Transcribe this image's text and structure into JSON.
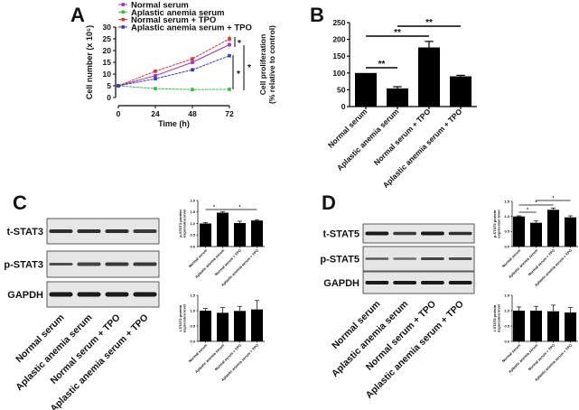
{
  "panel_labels": {
    "a": "A",
    "b": "B",
    "c": "C",
    "d": "D"
  },
  "groups": [
    "Normal serum",
    "Aplastic anemia serum",
    "Normal serum + TPO",
    "Aplastic anemia serum + TPO"
  ],
  "chart_data": [
    {
      "id": "A",
      "type": "line",
      "xlabel": "Time (h)",
      "ylabel": "Cell number (x 10⁵)",
      "x": [
        0,
        24,
        48,
        72
      ],
      "xticks": [
        "0",
        "24",
        "48",
        "72"
      ],
      "ylim": [
        0,
        30
      ],
      "yticks": [
        "0",
        "5",
        "10",
        "15",
        "20",
        "25",
        "30"
      ],
      "grid": false,
      "legend": "top",
      "series": [
        {
          "name": "Normal serum",
          "color": "#9b30c8",
          "marker": "diamond",
          "values": [
            5,
            9.3,
            15,
            22.5
          ],
          "errors": [
            0.2,
            0.5,
            0.8,
            0.8
          ]
        },
        {
          "name": "Aplastic anemia serum",
          "color": "#2fbf3a",
          "marker": "square",
          "values": [
            5,
            3.8,
            3.4,
            3.5
          ],
          "errors": [
            0.2,
            0.3,
            0.2,
            0.2
          ]
        },
        {
          "name": "Normal serum + TPO",
          "color": "#e0302a",
          "marker": "triangle-up",
          "values": [
            5,
            11.2,
            16.5,
            25
          ],
          "errors": [
            0.2,
            0.7,
            0.6,
            1.3
          ]
        },
        {
          "name": "Aplastic anemia serum + TPO",
          "color": "#2b3bd6",
          "marker": "triangle-down",
          "values": [
            5,
            8,
            11.8,
            17.8
          ],
          "errors": [
            0.2,
            0.4,
            0.8,
            0.7
          ]
        }
      ],
      "annotations": [
        "*",
        "*",
        "*"
      ]
    },
    {
      "id": "B",
      "type": "bar",
      "ylabel": "Cell proliferation",
      "ylabel2": "(% relative to control)",
      "categories": [
        "Normal serum",
        "Aplastic anemia serum",
        "Normal serum + TPO",
        "Aplastic anemia serum + TPO"
      ],
      "values": [
        100,
        54,
        176,
        90
      ],
      "errors": [
        0,
        5,
        18,
        3
      ],
      "ylim": [
        0,
        250
      ],
      "yticks": [
        "0",
        "50",
        "100",
        "150",
        "200",
        "250"
      ],
      "color": "#000000",
      "annotations": [
        "**",
        "**",
        "**"
      ]
    },
    {
      "id": "C-p",
      "type": "bar",
      "ylabel": "p-STAT3 protein",
      "ylabel2": "expression level",
      "categories": [
        "Normal serum",
        "Aplastic anemia serum",
        "Normal serum + TPO",
        "Aplastic anemia serum + TPO"
      ],
      "values": [
        1.0,
        1.47,
        1.02,
        1.13
      ],
      "errors": [
        0.04,
        0.05,
        0.08,
        0.03
      ],
      "ylim": [
        0,
        2.0
      ],
      "yticks": [
        "0.0",
        "0.5",
        "1.0",
        "1.5",
        "2.0"
      ],
      "color": "#000000",
      "annotations": [
        "*",
        "*"
      ]
    },
    {
      "id": "C-t",
      "type": "bar",
      "ylabel": "t-STAT3 protein",
      "ylabel2": "expression level",
      "categories": [
        "Normal serum",
        "Aplastic anemia serum",
        "Normal serum + TPO",
        "Aplastic anemia serum + TPO"
      ],
      "values": [
        1.0,
        0.93,
        0.99,
        1.04
      ],
      "errors": [
        0.07,
        0.17,
        0.15,
        0.29
      ],
      "ylim": [
        0,
        1.5
      ],
      "yticks": [
        "0.0",
        "0.5",
        "1.0",
        "1.5"
      ],
      "color": "#000000",
      "annotations": []
    },
    {
      "id": "D-p",
      "type": "bar",
      "ylabel": "p-STAT5 protein",
      "ylabel2": "expression level",
      "categories": [
        "Normal serum",
        "Aplastic anemia serum",
        "Normal serum + TPO",
        "Aplastic anemia serum + TPO"
      ],
      "values": [
        1.0,
        0.79,
        1.22,
        0.97
      ],
      "errors": [
        0.02,
        0.06,
        0.06,
        0.05
      ],
      "ylim": [
        0,
        1.5
      ],
      "yticks": [
        "0.0",
        "0.5",
        "1.0",
        "1.5"
      ],
      "color": "#000000",
      "annotations": [
        "*",
        "*",
        "*"
      ]
    },
    {
      "id": "D-t",
      "type": "bar",
      "ylabel": "t-STAT5 protein",
      "ylabel2": "expression level",
      "categories": [
        "Normal serum",
        "Aplastic anemia serum",
        "Normal serum + TPO",
        "Aplastic anemia serum + TPO"
      ],
      "values": [
        1.0,
        1.0,
        0.98,
        0.94
      ],
      "errors": [
        0.12,
        0.14,
        0.2,
        0.16
      ],
      "ylim": [
        0,
        1.5
      ],
      "yticks": [
        "0.0",
        "0.5",
        "1.0",
        "1.5"
      ],
      "color": "#000000",
      "annotations": []
    }
  ],
  "blots": {
    "c": {
      "rows": [
        "t-STAT3",
        "p-STAT3",
        "GAPDH"
      ]
    },
    "d": {
      "rows": [
        "t-STAT5",
        "p-STAT5",
        "GAPDH"
      ]
    }
  }
}
